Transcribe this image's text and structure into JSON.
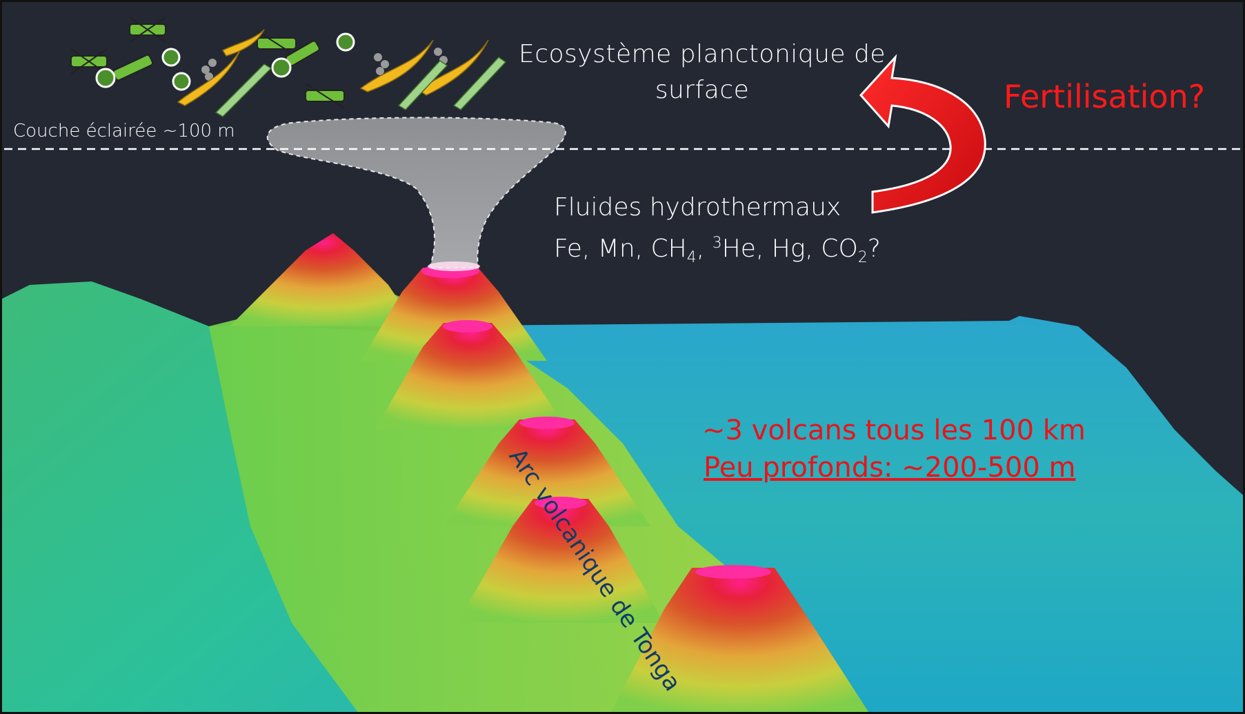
{
  "labels": {
    "surface_line1": "Ecosystème planctonique de",
    "surface_line2": "surface",
    "lit_layer": "Couche éclairée ~100 m",
    "fluids_line1": "Fluides hydrothermaux",
    "fluids_fe_mn": "Fe, Mn, CH",
    "fluids_ch_sub": "4",
    "fluids_comma": ", ",
    "fluids_he_sup": "3",
    "fluids_he_hg": "He, Hg, CO",
    "fluids_co_sub": "2",
    "fluids_q": "?",
    "fertilisation": "Fertilisation?",
    "volcano_count": "~3 volcans tous les 100 km",
    "volcano_depth": "Peu profonds: ~200-500 m",
    "arc": "Arc volcanique de Tonga"
  },
  "colors": {
    "background": "#232833",
    "arrow_red": "#e50f14",
    "text_red": "#e8141b",
    "arc_text": "#113a66",
    "plume": "#8a8c90"
  },
  "icons": [
    "plankton-diatom-icon",
    "plankton-coccolithophore-icon",
    "plankton-dinoflagellate-icon",
    "plankton-copepod-icon"
  ]
}
